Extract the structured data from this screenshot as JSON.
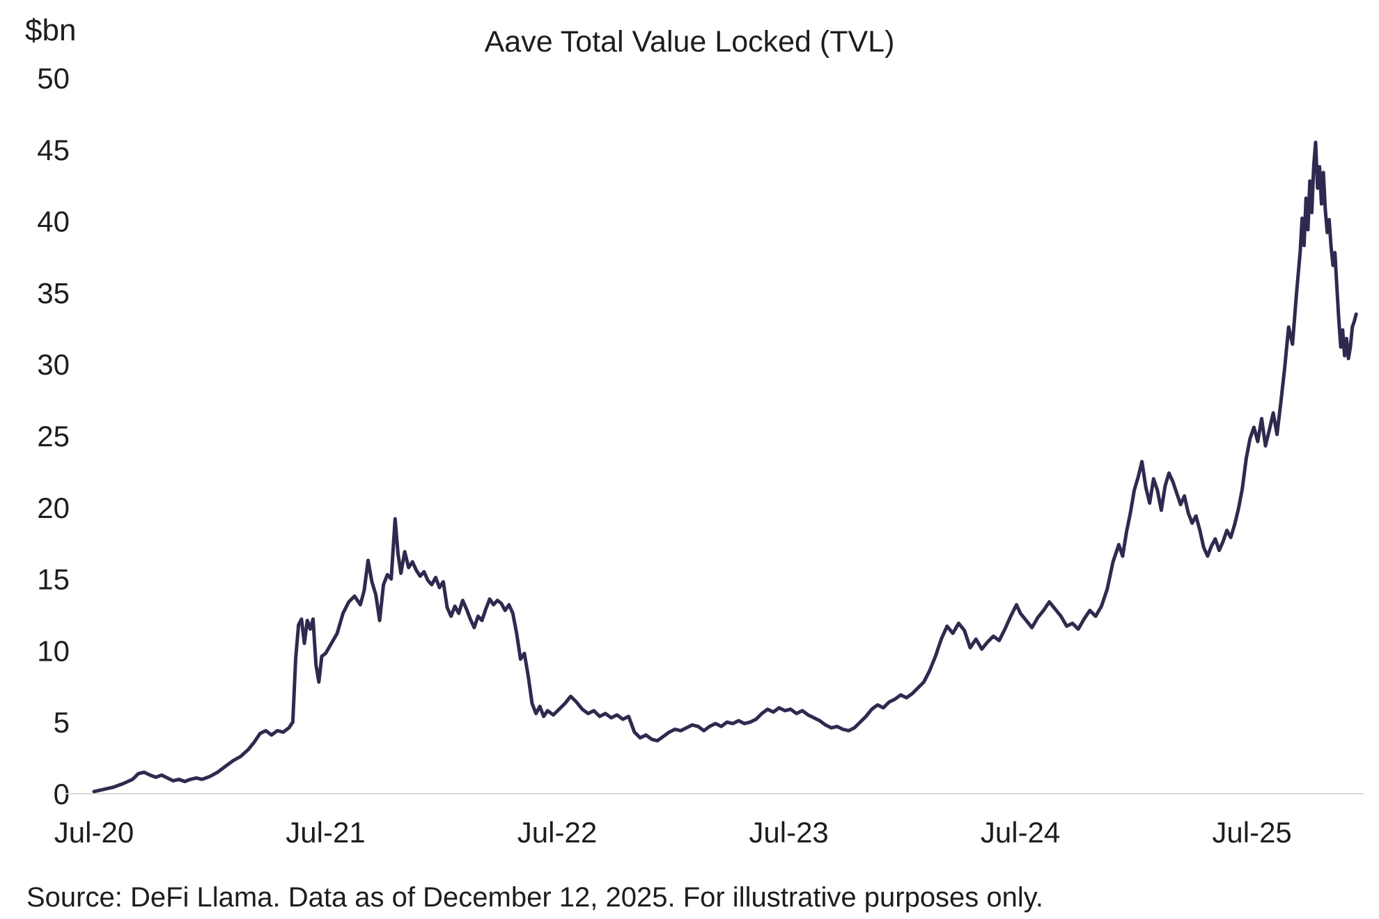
{
  "source_note": "Source: DeFi Llama. Data as of December 12, 2025. For illustrative purposes only.",
  "colors": {
    "line": "#2e2a4f",
    "axis_line": "#d9d9d9",
    "text": "#1d1d1f",
    "background": "#ffffff"
  },
  "chart_data": {
    "type": "line",
    "title": "Aave Total Value Locked (TVL)",
    "ylabel": "$bn",
    "xlabel": "",
    "x_unit": "months since Jul-2020",
    "xlim": [
      0,
      65.5
    ],
    "ylim": [
      0,
      50
    ],
    "grid": false,
    "legend": "none",
    "y_ticks": [
      0,
      5,
      10,
      15,
      20,
      25,
      30,
      35,
      40,
      45,
      50
    ],
    "x_ticks": [
      {
        "pos": 0,
        "label": "Jul-20"
      },
      {
        "pos": 12,
        "label": "Jul-21"
      },
      {
        "pos": 24,
        "label": "Jul-22"
      },
      {
        "pos": 36,
        "label": "Jul-23"
      },
      {
        "pos": 48,
        "label": "Jul-24"
      },
      {
        "pos": 60,
        "label": "Jul-25"
      }
    ],
    "series": [
      {
        "name": "Aave TVL ($bn)",
        "points": [
          [
            0,
            0.15
          ],
          [
            0.5,
            0.3
          ],
          [
            1,
            0.45
          ],
          [
            1.5,
            0.7
          ],
          [
            2,
            1.0
          ],
          [
            2.3,
            1.4
          ],
          [
            2.6,
            1.5
          ],
          [
            2.9,
            1.3
          ],
          [
            3.2,
            1.15
          ],
          [
            3.5,
            1.3
          ],
          [
            3.8,
            1.1
          ],
          [
            4.1,
            0.9
          ],
          [
            4.4,
            1.0
          ],
          [
            4.7,
            0.85
          ],
          [
            5,
            1.0
          ],
          [
            5.3,
            1.1
          ],
          [
            5.6,
            1.0
          ],
          [
            6,
            1.2
          ],
          [
            6.4,
            1.5
          ],
          [
            6.8,
            1.9
          ],
          [
            7.2,
            2.3
          ],
          [
            7.6,
            2.6
          ],
          [
            8,
            3.1
          ],
          [
            8.3,
            3.6
          ],
          [
            8.6,
            4.2
          ],
          [
            8.9,
            4.4
          ],
          [
            9.2,
            4.1
          ],
          [
            9.5,
            4.4
          ],
          [
            9.8,
            4.3
          ],
          [
            10.1,
            4.6
          ],
          [
            10.3,
            5.0
          ],
          [
            10.45,
            9.5
          ],
          [
            10.6,
            11.8
          ],
          [
            10.75,
            12.2
          ],
          [
            10.9,
            10.5
          ],
          [
            11.05,
            12.1
          ],
          [
            11.2,
            11.5
          ],
          [
            11.35,
            12.2
          ],
          [
            11.5,
            9.0
          ],
          [
            11.65,
            7.8
          ],
          [
            11.8,
            9.6
          ],
          [
            12,
            9.8
          ],
          [
            12.3,
            10.5
          ],
          [
            12.6,
            11.2
          ],
          [
            12.9,
            12.6
          ],
          [
            13.2,
            13.4
          ],
          [
            13.5,
            13.8
          ],
          [
            13.8,
            13.2
          ],
          [
            14,
            14.2
          ],
          [
            14.2,
            16.3
          ],
          [
            14.4,
            14.8
          ],
          [
            14.6,
            13.9
          ],
          [
            14.8,
            12.1
          ],
          [
            15,
            14.6
          ],
          [
            15.2,
            15.3
          ],
          [
            15.4,
            15.0
          ],
          [
            15.6,
            19.2
          ],
          [
            15.75,
            16.8
          ],
          [
            15.9,
            15.4
          ],
          [
            16.1,
            16.9
          ],
          [
            16.3,
            15.8
          ],
          [
            16.5,
            16.2
          ],
          [
            16.7,
            15.6
          ],
          [
            16.9,
            15.2
          ],
          [
            17.1,
            15.5
          ],
          [
            17.3,
            14.9
          ],
          [
            17.5,
            14.6
          ],
          [
            17.7,
            15.1
          ],
          [
            17.9,
            14.4
          ],
          [
            18.1,
            14.8
          ],
          [
            18.3,
            13.0
          ],
          [
            18.5,
            12.4
          ],
          [
            18.7,
            13.1
          ],
          [
            18.9,
            12.6
          ],
          [
            19.1,
            13.5
          ],
          [
            19.3,
            12.9
          ],
          [
            19.5,
            12.2
          ],
          [
            19.7,
            11.6
          ],
          [
            19.9,
            12.4
          ],
          [
            20.1,
            12.1
          ],
          [
            20.3,
            12.9
          ],
          [
            20.5,
            13.6
          ],
          [
            20.7,
            13.2
          ],
          [
            20.9,
            13.5
          ],
          [
            21.1,
            13.3
          ],
          [
            21.3,
            12.8
          ],
          [
            21.5,
            13.2
          ],
          [
            21.7,
            12.6
          ],
          [
            21.9,
            11.2
          ],
          [
            22.1,
            9.4
          ],
          [
            22.3,
            9.8
          ],
          [
            22.5,
            8.2
          ],
          [
            22.7,
            6.3
          ],
          [
            22.9,
            5.6
          ],
          [
            23.1,
            6.1
          ],
          [
            23.3,
            5.4
          ],
          [
            23.5,
            5.8
          ],
          [
            23.8,
            5.5
          ],
          [
            24.1,
            5.9
          ],
          [
            24.4,
            6.3
          ],
          [
            24.7,
            6.8
          ],
          [
            25,
            6.4
          ],
          [
            25.3,
            5.9
          ],
          [
            25.6,
            5.6
          ],
          [
            25.9,
            5.8
          ],
          [
            26.2,
            5.4
          ],
          [
            26.5,
            5.6
          ],
          [
            26.8,
            5.3
          ],
          [
            27.1,
            5.5
          ],
          [
            27.4,
            5.2
          ],
          [
            27.7,
            5.4
          ],
          [
            28,
            4.3
          ],
          [
            28.3,
            3.9
          ],
          [
            28.6,
            4.1
          ],
          [
            28.9,
            3.8
          ],
          [
            29.2,
            3.7
          ],
          [
            29.5,
            4.0
          ],
          [
            29.8,
            4.3
          ],
          [
            30.1,
            4.5
          ],
          [
            30.4,
            4.4
          ],
          [
            30.7,
            4.6
          ],
          [
            31,
            4.8
          ],
          [
            31.3,
            4.7
          ],
          [
            31.6,
            4.4
          ],
          [
            31.9,
            4.7
          ],
          [
            32.2,
            4.9
          ],
          [
            32.5,
            4.7
          ],
          [
            32.8,
            5.0
          ],
          [
            33.1,
            4.9
          ],
          [
            33.4,
            5.1
          ],
          [
            33.7,
            4.9
          ],
          [
            34,
            5.0
          ],
          [
            34.3,
            5.2
          ],
          [
            34.6,
            5.6
          ],
          [
            34.9,
            5.9
          ],
          [
            35.2,
            5.7
          ],
          [
            35.5,
            6.0
          ],
          [
            35.8,
            5.8
          ],
          [
            36.1,
            5.9
          ],
          [
            36.4,
            5.6
          ],
          [
            36.7,
            5.8
          ],
          [
            37,
            5.5
          ],
          [
            37.3,
            5.3
          ],
          [
            37.6,
            5.1
          ],
          [
            37.9,
            4.8
          ],
          [
            38.2,
            4.6
          ],
          [
            38.5,
            4.7
          ],
          [
            38.8,
            4.5
          ],
          [
            39.1,
            4.4
          ],
          [
            39.4,
            4.6
          ],
          [
            39.7,
            5.0
          ],
          [
            40,
            5.4
          ],
          [
            40.3,
            5.9
          ],
          [
            40.6,
            6.2
          ],
          [
            40.9,
            6.0
          ],
          [
            41.2,
            6.4
          ],
          [
            41.5,
            6.6
          ],
          [
            41.8,
            6.9
          ],
          [
            42.1,
            6.7
          ],
          [
            42.4,
            7.0
          ],
          [
            42.7,
            7.4
          ],
          [
            43,
            7.8
          ],
          [
            43.3,
            8.6
          ],
          [
            43.6,
            9.6
          ],
          [
            43.9,
            10.8
          ],
          [
            44.2,
            11.7
          ],
          [
            44.5,
            11.2
          ],
          [
            44.8,
            11.9
          ],
          [
            45.1,
            11.4
          ],
          [
            45.4,
            10.2
          ],
          [
            45.7,
            10.8
          ],
          [
            46,
            10.1
          ],
          [
            46.3,
            10.6
          ],
          [
            46.6,
            11.0
          ],
          [
            46.9,
            10.7
          ],
          [
            47.2,
            11.5
          ],
          [
            47.5,
            12.4
          ],
          [
            47.8,
            13.2
          ],
          [
            48,
            12.6
          ],
          [
            48.3,
            12.1
          ],
          [
            48.6,
            11.6
          ],
          [
            48.9,
            12.3
          ],
          [
            49.2,
            12.8
          ],
          [
            49.5,
            13.4
          ],
          [
            49.8,
            12.9
          ],
          [
            50.1,
            12.4
          ],
          [
            50.4,
            11.7
          ],
          [
            50.7,
            11.9
          ],
          [
            51,
            11.5
          ],
          [
            51.3,
            12.2
          ],
          [
            51.6,
            12.8
          ],
          [
            51.9,
            12.4
          ],
          [
            52.2,
            13.1
          ],
          [
            52.5,
            14.3
          ],
          [
            52.8,
            16.2
          ],
          [
            53.1,
            17.4
          ],
          [
            53.3,
            16.6
          ],
          [
            53.5,
            18.3
          ],
          [
            53.7,
            19.6
          ],
          [
            53.9,
            21.2
          ],
          [
            54.1,
            22.1
          ],
          [
            54.3,
            23.2
          ],
          [
            54.5,
            21.4
          ],
          [
            54.7,
            20.3
          ],
          [
            54.9,
            22.0
          ],
          [
            55.1,
            21.2
          ],
          [
            55.3,
            19.8
          ],
          [
            55.5,
            21.5
          ],
          [
            55.7,
            22.4
          ],
          [
            55.9,
            21.8
          ],
          [
            56.1,
            21.0
          ],
          [
            56.3,
            20.2
          ],
          [
            56.5,
            20.8
          ],
          [
            56.7,
            19.6
          ],
          [
            56.9,
            18.9
          ],
          [
            57.1,
            19.4
          ],
          [
            57.3,
            18.4
          ],
          [
            57.5,
            17.2
          ],
          [
            57.7,
            16.6
          ],
          [
            57.9,
            17.3
          ],
          [
            58.1,
            17.8
          ],
          [
            58.3,
            17.0
          ],
          [
            58.5,
            17.6
          ],
          [
            58.7,
            18.4
          ],
          [
            58.9,
            17.9
          ],
          [
            59.1,
            18.8
          ],
          [
            59.3,
            19.9
          ],
          [
            59.5,
            21.3
          ],
          [
            59.7,
            23.4
          ],
          [
            59.9,
            24.8
          ],
          [
            60.1,
            25.6
          ],
          [
            60.3,
            24.6
          ],
          [
            60.5,
            26.2
          ],
          [
            60.7,
            24.3
          ],
          [
            60.9,
            25.4
          ],
          [
            61.1,
            26.6
          ],
          [
            61.3,
            25.1
          ],
          [
            61.5,
            27.4
          ],
          [
            61.7,
            29.8
          ],
          [
            61.9,
            32.6
          ],
          [
            62.1,
            31.4
          ],
          [
            62.3,
            34.8
          ],
          [
            62.5,
            37.9
          ],
          [
            62.6,
            40.2
          ],
          [
            62.7,
            38.3
          ],
          [
            62.8,
            41.6
          ],
          [
            62.9,
            39.4
          ],
          [
            63,
            42.8
          ],
          [
            63.1,
            40.6
          ],
          [
            63.2,
            43.9
          ],
          [
            63.3,
            45.5
          ],
          [
            63.4,
            42.3
          ],
          [
            63.5,
            43.8
          ],
          [
            63.6,
            41.2
          ],
          [
            63.7,
            43.4
          ],
          [
            63.8,
            40.8
          ],
          [
            63.9,
            39.2
          ],
          [
            64,
            40.1
          ],
          [
            64.1,
            38.2
          ],
          [
            64.2,
            36.9
          ],
          [
            64.3,
            37.8
          ],
          [
            64.4,
            35.4
          ],
          [
            64.5,
            33.1
          ],
          [
            64.6,
            31.2
          ],
          [
            64.7,
            32.4
          ],
          [
            64.8,
            30.6
          ],
          [
            64.9,
            31.8
          ],
          [
            65,
            30.4
          ],
          [
            65.1,
            31.2
          ],
          [
            65.2,
            32.6
          ],
          [
            65.3,
            33.0
          ],
          [
            65.4,
            33.5
          ]
        ]
      }
    ]
  }
}
